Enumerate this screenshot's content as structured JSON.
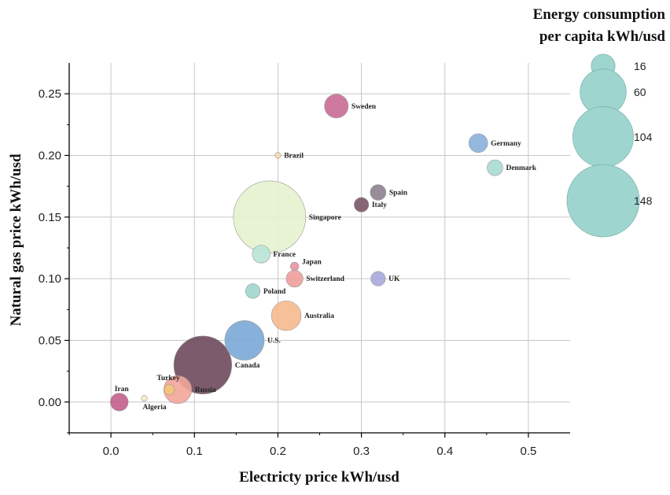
{
  "chart_data": {
    "type": "scatter",
    "xlabel": "Electricty price kWh/usd",
    "ylabel": "Natural gas price kWh/usd",
    "xlim": [
      -0.05,
      0.55
    ],
    "ylim": [
      -0.025,
      0.275
    ],
    "xticks": [
      "0.0",
      "0.1",
      "0.2",
      "0.3",
      "0.4",
      "0.5"
    ],
    "xtick_values": [
      0.0,
      0.1,
      0.2,
      0.3,
      0.4,
      0.5
    ],
    "yticks": [
      "0.00",
      "0.05",
      "0.10",
      "0.15",
      "0.20",
      "0.25"
    ],
    "ytick_values": [
      0.0,
      0.05,
      0.1,
      0.15,
      0.2,
      0.25
    ],
    "grid": true,
    "legend": {
      "title_line1": "Energy consumption",
      "title_line2": "per capita kWh/usd",
      "placement": "top-right",
      "sizes": [
        16,
        60,
        104,
        148
      ],
      "size_labels": [
        "16",
        "60",
        "104",
        "148"
      ],
      "color": "#9fd5cf"
    },
    "points": [
      {
        "name": "Sweden",
        "x": 0.27,
        "y": 0.24,
        "size": 16,
        "color": "#c96b95"
      },
      {
        "name": "Brazil",
        "x": 0.2,
        "y": 0.2,
        "size": 1,
        "color": "#f3dcb0"
      },
      {
        "name": "Germany",
        "x": 0.44,
        "y": 0.21,
        "size": 10,
        "color": "#8ab0dc"
      },
      {
        "name": "Denmark",
        "x": 0.46,
        "y": 0.19,
        "size": 7,
        "color": "#a9dcd0"
      },
      {
        "name": "Spain",
        "x": 0.32,
        "y": 0.17,
        "size": 7,
        "color": "#8c7f8d"
      },
      {
        "name": "Italy",
        "x": 0.3,
        "y": 0.16,
        "size": 6,
        "color": "#7a5566"
      },
      {
        "name": "Singapore",
        "x": 0.19,
        "y": 0.15,
        "size": 148,
        "color": "#e5f2cf"
      },
      {
        "name": "France",
        "x": 0.18,
        "y": 0.12,
        "size": 9,
        "color": "#b9e4d7"
      },
      {
        "name": "Japan",
        "x": 0.22,
        "y": 0.11,
        "size": 2,
        "color": "#e5949f"
      },
      {
        "name": "Switzerland",
        "x": 0.22,
        "y": 0.1,
        "size": 8,
        "color": "#ee9f9a"
      },
      {
        "name": "UK",
        "x": 0.32,
        "y": 0.1,
        "size": 6,
        "color": "#a9a8dc"
      },
      {
        "name": "Poland",
        "x": 0.17,
        "y": 0.09,
        "size": 6,
        "color": "#9ed6cc"
      },
      {
        "name": "Australia",
        "x": 0.21,
        "y": 0.07,
        "size": 25,
        "color": "#f6b98e"
      },
      {
        "name": "U.S.",
        "x": 0.16,
        "y": 0.05,
        "size": 44,
        "color": "#7aa8d6"
      },
      {
        "name": "Canada",
        "x": 0.11,
        "y": 0.03,
        "size": 95,
        "color": "#6e4a5c"
      },
      {
        "name": "Russia",
        "x": 0.08,
        "y": 0.01,
        "size": 22,
        "color": "#f3a59a"
      },
      {
        "name": "Turkey",
        "x": 0.07,
        "y": 0.01,
        "size": 3,
        "color": "#f6c67a"
      },
      {
        "name": "Iran",
        "x": 0.01,
        "y": 0.0,
        "size": 9,
        "color": "#c25e8c"
      },
      {
        "name": "Algeria",
        "x": 0.04,
        "y": 0.003,
        "size": 1,
        "color": "#f6e7c6"
      }
    ]
  }
}
